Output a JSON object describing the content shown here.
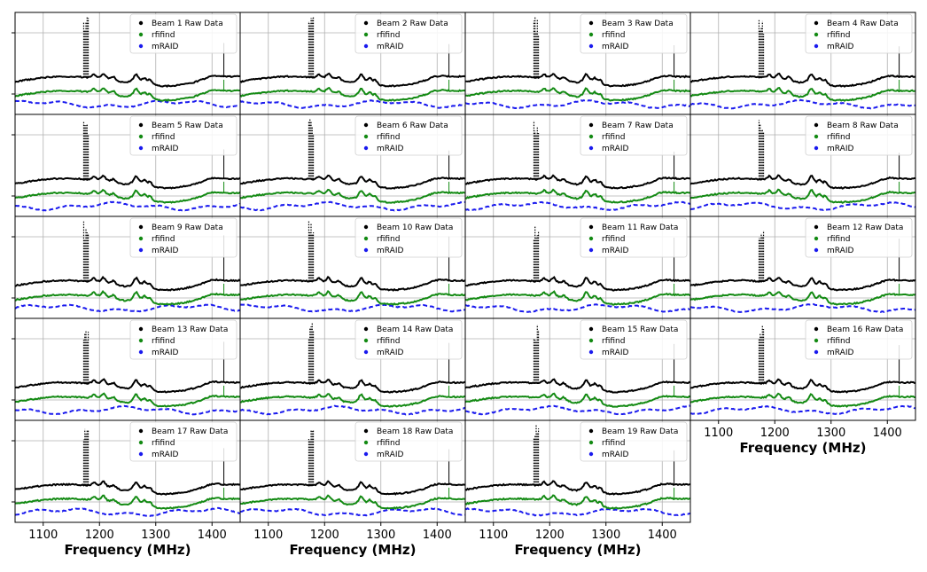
{
  "figure": {
    "xlabel": "Frequency (MHz)",
    "colors": {
      "raw": "#000000",
      "rfifind": "#138a13",
      "mraid": "#1a1aee",
      "grid": "#b0b0b0"
    }
  },
  "chart_data": {
    "type": "line",
    "xlim": [
      1050,
      1450
    ],
    "x_ticks": [
      1100,
      1200,
      1300,
      1400
    ],
    "grid": true,
    "legend_placement": "upper-right",
    "series_names": [
      "rfifind",
      "mRAID"
    ],
    "panels": [
      {
        "beam": 1,
        "raw_label": "Beam 1 Raw Data"
      },
      {
        "beam": 2,
        "raw_label": "Beam 2 Raw Data"
      },
      {
        "beam": 3,
        "raw_label": "Beam 3 Raw Data"
      },
      {
        "beam": 4,
        "raw_label": "Beam 4 Raw Data"
      },
      {
        "beam": 5,
        "raw_label": "Beam 5 Raw Data"
      },
      {
        "beam": 6,
        "raw_label": "Beam 6 Raw Data"
      },
      {
        "beam": 7,
        "raw_label": "Beam 7 Raw Data"
      },
      {
        "beam": 8,
        "raw_label": "Beam 8 Raw Data"
      },
      {
        "beam": 9,
        "raw_label": "Beam 9 Raw Data"
      },
      {
        "beam": 10,
        "raw_label": "Beam 10 Raw Data"
      },
      {
        "beam": 11,
        "raw_label": "Beam 11 Raw Data"
      },
      {
        "beam": 12,
        "raw_label": "Beam 12 Raw Data"
      },
      {
        "beam": 13,
        "raw_label": "Beam 13 Raw Data"
      },
      {
        "beam": 14,
        "raw_label": "Beam 14 Raw Data"
      },
      {
        "beam": 15,
        "raw_label": "Beam 15 Raw Data"
      },
      {
        "beam": 16,
        "raw_label": "Beam 16 Raw Data"
      },
      {
        "beam": 17,
        "raw_label": "Beam 17 Raw Data"
      },
      {
        "beam": 18,
        "raw_label": "Beam 18 Raw Data"
      },
      {
        "beam": 19,
        "raw_label": "Beam 19 Raw Data"
      }
    ]
  }
}
